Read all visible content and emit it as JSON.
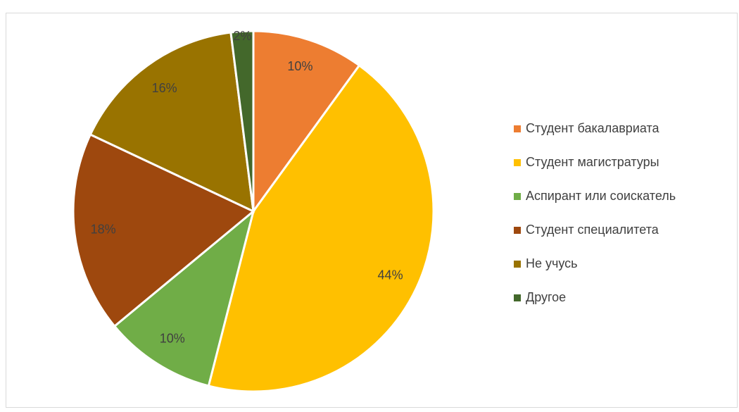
{
  "chart_data": {
    "type": "pie",
    "categories": [
      "Студент бакалавриата",
      "Студент магистратуры",
      "Аспирант или соискатель",
      "Студент специалитета",
      "Не учусь",
      "Другое"
    ],
    "values": [
      10,
      44,
      10,
      18,
      16,
      2
    ],
    "value_labels": [
      "10%",
      "44%",
      "10%",
      "18%",
      "16%",
      "2%"
    ],
    "colors": [
      "#ED7D31",
      "#FFC000",
      "#70AD47",
      "#9E480E",
      "#997300",
      "#43682B"
    ],
    "legend": "right"
  }
}
